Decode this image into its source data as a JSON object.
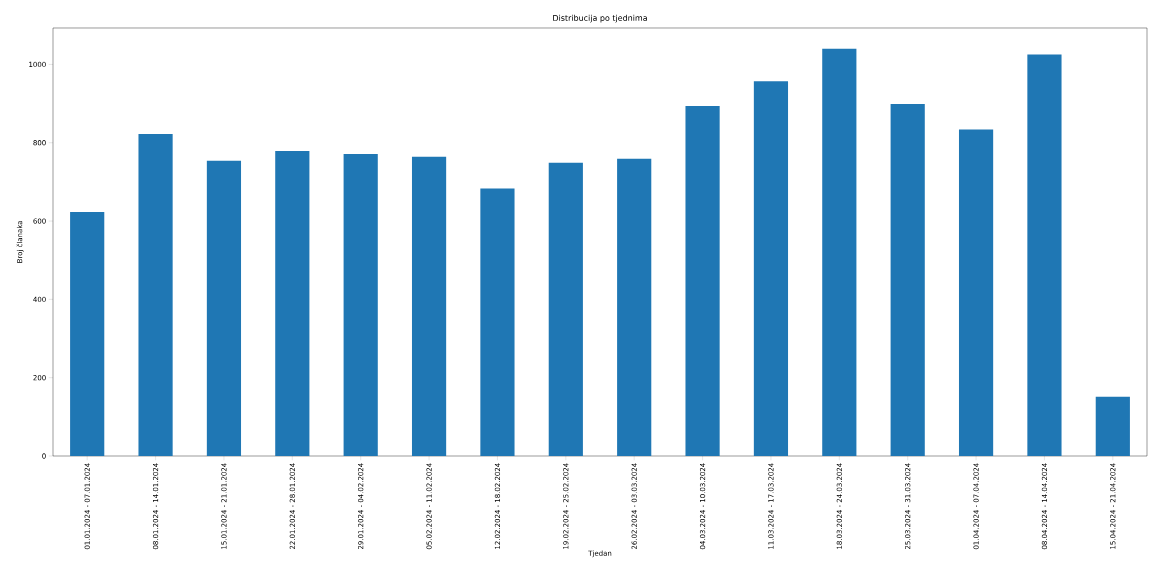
{
  "chart_data": {
    "type": "bar",
    "title": "Distribucija po tjednima",
    "xlabel": "Tjedan",
    "ylabel": "Broj članaka",
    "categories": [
      "01.01.2024 - 07.01.2024",
      "08.01.2024 - 14.01.2024",
      "15.01.2024 - 21.01.2024",
      "22.01.2024 - 28.01.2024",
      "29.01.2024 - 04.02.2024",
      "05.02.2024 - 11.02.2024",
      "12.02.2024 - 18.02.2024",
      "19.02.2024 - 25.02.2024",
      "26.02.2024 - 03.03.2024",
      "04.03.2024 - 10.03.2024",
      "11.03.2024 - 17.03.2024",
      "18.03.2024 - 24.03.2024",
      "25.03.2024 - 31.03.2024",
      "01.04.2024 - 07.04.2024",
      "08.04.2024 - 14.04.2024",
      "15.04.2024 - 21.04.2024"
    ],
    "values": [
      623,
      822,
      754,
      779,
      771,
      764,
      683,
      749,
      759,
      894,
      957,
      1040,
      899,
      834,
      1025,
      151
    ],
    "color": "#1f77b4",
    "ylim": [
      0,
      1093
    ],
    "yticks": [
      0,
      200,
      400,
      600,
      800,
      1000
    ]
  }
}
